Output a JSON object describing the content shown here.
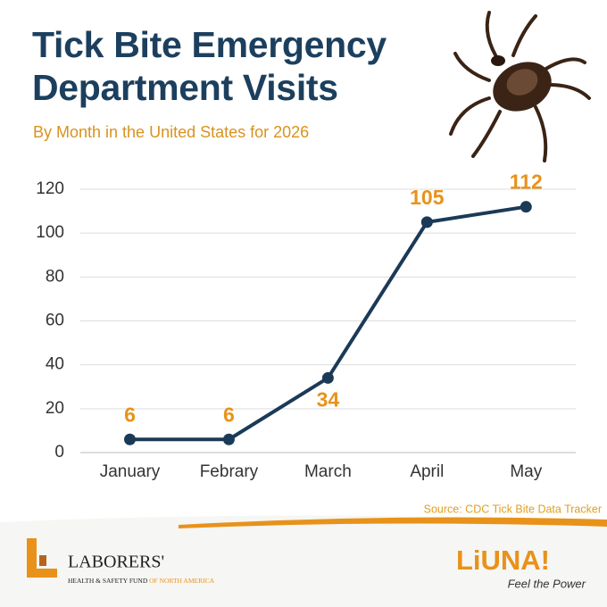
{
  "chart_data": {
    "type": "line",
    "title": "Tick Bite Emergency Department Visits",
    "subtitle": "By Month in the United States for 2026",
    "source": "Source: CDC Tick Bite Data Tracker",
    "categories": [
      "January",
      "Febrary",
      "March",
      "April",
      "May"
    ],
    "values": [
      6,
      6,
      34,
      105,
      112
    ],
    "color": "#1b3a57",
    "label_color": "#e8921a",
    "ylim": [
      0,
      120
    ],
    "yticks": [
      0,
      20,
      40,
      60,
      80,
      100,
      120
    ],
    "grid": true
  },
  "footer": {
    "left_logo": {
      "name": "LABORERS'",
      "line": "HEALTH & SAFETY FUND",
      "line_end": "OF NORTH AMERICA"
    },
    "right_logo": {
      "name": "LiUNA!",
      "tagline": "Feel the Power"
    }
  }
}
